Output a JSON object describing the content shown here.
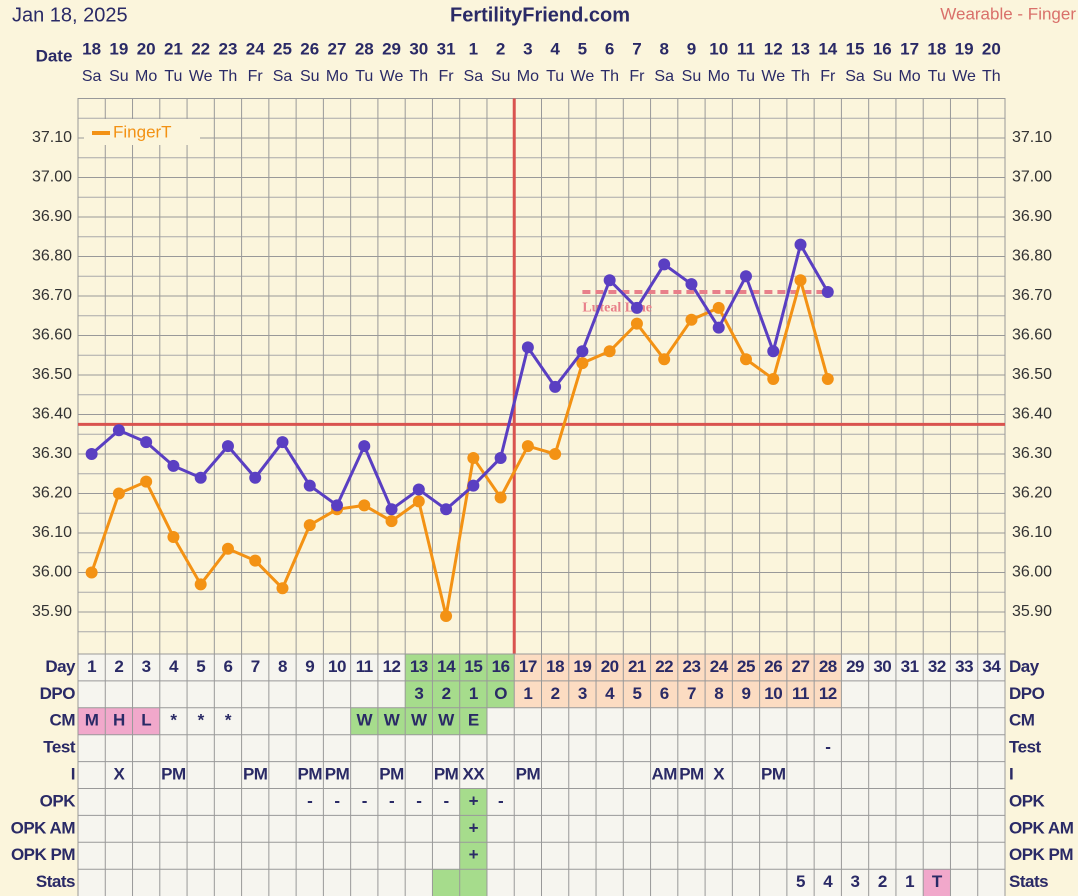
{
  "header": {
    "date": "Jan 18, 2025",
    "site": "FertilityFriend.com",
    "source": "Wearable - Finger",
    "date_label": "Date"
  },
  "chart_data": {
    "type": "line",
    "categories": [
      18,
      19,
      20,
      21,
      22,
      23,
      24,
      25,
      26,
      27,
      28,
      29,
      30,
      31,
      1,
      2,
      3,
      4,
      5,
      6,
      7,
      8,
      9,
      10,
      11,
      12,
      13,
      14,
      15,
      16,
      17,
      18,
      19,
      20
    ],
    "weekdays": [
      "Sa",
      "Su",
      "Mo",
      "Tu",
      "We",
      "Th",
      "Fr",
      "Sa",
      "Su",
      "Mo",
      "Tu",
      "We",
      "Th",
      "Fr",
      "Sa",
      "Su",
      "Mo",
      "Tu",
      "We",
      "Th",
      "Fr",
      "Sa",
      "Su",
      "Mo",
      "Tu",
      "We",
      "Th",
      "Fr",
      "Sa",
      "Su",
      "Mo",
      "Tu",
      "We",
      "Th"
    ],
    "series": [
      {
        "color": "#5a3fc2",
        "values": [
          36.3,
          36.36,
          36.33,
          36.27,
          36.24,
          36.32,
          36.24,
          36.33,
          36.22,
          36.17,
          36.32,
          36.16,
          36.21,
          36.16,
          36.22,
          36.29,
          36.57,
          36.47,
          36.56,
          36.74,
          36.67,
          36.78,
          36.73,
          36.62,
          36.75,
          36.56,
          36.83,
          36.71,
          null,
          null,
          null,
          null,
          null,
          null
        ]
      },
      {
        "name": "FingerT",
        "color": "#f39214",
        "values": [
          36.0,
          36.2,
          36.23,
          36.09,
          35.97,
          36.06,
          36.03,
          35.96,
          36.12,
          36.16,
          36.17,
          36.13,
          36.18,
          35.89,
          36.29,
          36.19,
          36.32,
          36.3,
          36.53,
          36.56,
          36.63,
          36.54,
          36.64,
          36.67,
          36.54,
          36.49,
          36.74,
          36.49,
          null,
          null,
          null,
          null,
          null,
          null
        ]
      }
    ],
    "ylim": [
      35.8,
      37.2
    ],
    "yticks": [
      {
        "value": 35.9,
        "label": "35.90"
      },
      {
        "value": 36.0,
        "label": "36.00"
      },
      {
        "value": 36.1,
        "label": "36.10"
      },
      {
        "value": 36.2,
        "label": "36.20"
      },
      {
        "value": 36.3,
        "label": "36.30"
      },
      {
        "value": 36.4,
        "label": "36.40"
      },
      {
        "value": 36.5,
        "label": "36.50"
      },
      {
        "value": 36.6,
        "label": "36.60"
      },
      {
        "value": 36.7,
        "label": "36.70"
      },
      {
        "value": 36.8,
        "label": "36.80"
      },
      {
        "value": 36.9,
        "label": "36.90"
      },
      {
        "value": 37.0,
        "label": "37.00"
      },
      {
        "value": 37.1,
        "label": "37.10"
      }
    ],
    "coverline": {
      "value": 36.375,
      "color": "#d9534f"
    },
    "ovulation_day": {
      "day": 16,
      "color": "#d9534f"
    },
    "luteal_line": {
      "label": "Luteal Line",
      "value": 36.71,
      "from": 19,
      "to": 28,
      "color": "#e8808a"
    },
    "legend": "top-left"
  },
  "table": {
    "rows": [
      {
        "label": "Day",
        "cells": [
          1,
          2,
          3,
          4,
          5,
          6,
          7,
          8,
          9,
          10,
          11,
          12,
          13,
          14,
          15,
          16,
          17,
          18,
          19,
          20,
          21,
          22,
          23,
          24,
          25,
          26,
          27,
          28,
          29,
          30,
          31,
          32,
          33,
          34
        ],
        "highlights": [
          {
            "from": 13,
            "to": 16,
            "color": "#a6dc8c"
          },
          {
            "from": 17,
            "to": 28,
            "color": "#fcdcc2"
          }
        ]
      },
      {
        "label": "DPO",
        "cells": [
          null,
          null,
          null,
          null,
          null,
          null,
          null,
          null,
          null,
          null,
          null,
          null,
          3,
          2,
          1,
          "O",
          1,
          2,
          3,
          4,
          5,
          6,
          7,
          8,
          9,
          10,
          11,
          12,
          null,
          null,
          null,
          null,
          null,
          null
        ],
        "highlights": [
          {
            "from": 13,
            "to": 16,
            "color": "#a6dc8c"
          },
          {
            "from": 17,
            "to": 28,
            "color": "#fcdcc2"
          }
        ]
      },
      {
        "label": "CM",
        "cells": [
          "M",
          "H",
          "L",
          "*",
          "*",
          "*",
          null,
          null,
          null,
          null,
          "W",
          "W",
          "W",
          "W",
          "E",
          null,
          null,
          null,
          null,
          null,
          null,
          null,
          null,
          null,
          null,
          null,
          null,
          null,
          null,
          null,
          null,
          null,
          null,
          null
        ],
        "highlights": [
          {
            "from": 1,
            "to": 3,
            "color": "#f1a8cb"
          },
          {
            "from": 11,
            "to": 15,
            "color": "#a6dc8c"
          }
        ]
      },
      {
        "label": "Test",
        "cells": [
          null,
          null,
          null,
          null,
          null,
          null,
          null,
          null,
          null,
          null,
          null,
          null,
          null,
          null,
          null,
          null,
          null,
          null,
          null,
          null,
          null,
          null,
          null,
          null,
          null,
          null,
          null,
          "-",
          null,
          null,
          null,
          null,
          null,
          null
        ],
        "highlights": []
      },
      {
        "label": "I",
        "cells": [
          null,
          "X",
          null,
          "PM",
          null,
          null,
          "PM",
          null,
          "PM",
          "PM",
          null,
          "PM",
          null,
          "PM",
          "XX",
          null,
          "PM",
          null,
          null,
          null,
          null,
          "AM",
          "PM",
          "X",
          null,
          "PM",
          null,
          null,
          null,
          null,
          null,
          null,
          null,
          null
        ],
        "highlights": []
      },
      {
        "label": "OPK",
        "cells": [
          null,
          null,
          null,
          null,
          null,
          null,
          null,
          null,
          "-",
          "-",
          "-",
          "-",
          "-",
          "-",
          "+",
          "-",
          null,
          null,
          null,
          null,
          null,
          null,
          null,
          null,
          null,
          null,
          null,
          null,
          null,
          null,
          null,
          null,
          null,
          null
        ],
        "highlights": [
          {
            "from": 15,
            "to": 15,
            "color": "#a6dc8c"
          }
        ]
      },
      {
        "label": "OPK AM",
        "cells": [
          null,
          null,
          null,
          null,
          null,
          null,
          null,
          null,
          null,
          null,
          null,
          null,
          null,
          null,
          "+",
          null,
          null,
          null,
          null,
          null,
          null,
          null,
          null,
          null,
          null,
          null,
          null,
          null,
          null,
          null,
          null,
          null,
          null,
          null
        ],
        "highlights": [
          {
            "from": 15,
            "to": 15,
            "color": "#a6dc8c"
          }
        ]
      },
      {
        "label": "OPK PM",
        "cells": [
          null,
          null,
          null,
          null,
          null,
          null,
          null,
          null,
          null,
          null,
          null,
          null,
          null,
          null,
          "+",
          null,
          null,
          null,
          null,
          null,
          null,
          null,
          null,
          null,
          null,
          null,
          null,
          null,
          null,
          null,
          null,
          null,
          null,
          null
        ],
        "highlights": [
          {
            "from": 15,
            "to": 15,
            "color": "#a6dc8c"
          }
        ]
      },
      {
        "label": "Stats",
        "cells": [
          null,
          null,
          null,
          null,
          null,
          null,
          null,
          null,
          null,
          null,
          null,
          null,
          null,
          null,
          null,
          null,
          null,
          null,
          null,
          null,
          null,
          null,
          null,
          null,
          null,
          null,
          5,
          4,
          3,
          2,
          1,
          "T",
          null,
          null
        ],
        "highlights": [
          {
            "from": 14,
            "to": 15,
            "color": "#a6dc8c"
          },
          {
            "from": 32,
            "to": 32,
            "color": "#f1a8cb"
          }
        ]
      }
    ]
  }
}
